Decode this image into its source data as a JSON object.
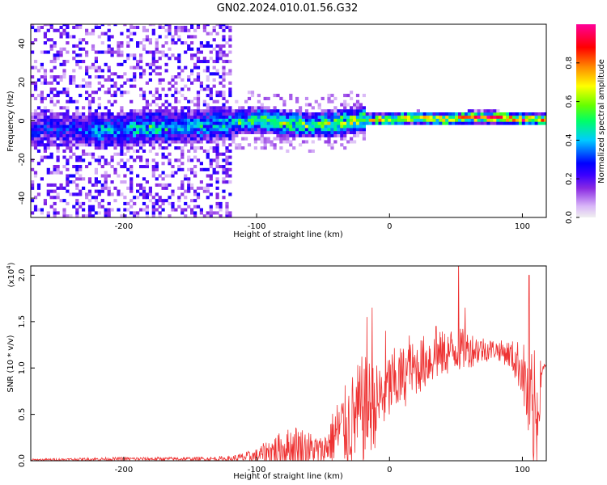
{
  "title": "GN02.2024.010.01.56.G32",
  "chart_data": [
    {
      "type": "heatmap",
      "xlabel": "Height of straight line (km)",
      "ylabel": "Frequency (Hz)",
      "xlim": [
        -270,
        118
      ],
      "ylim": [
        -50,
        50
      ],
      "xticks": [
        -200,
        -100,
        0,
        100
      ],
      "yticks": [
        -40,
        -20,
        0,
        20,
        40
      ],
      "colorbar": {
        "label": "Normalized spectral amplitude",
        "ticks": [
          "0.0",
          "0.2",
          "0.4",
          "0.6",
          "0.8"
        ],
        "range": [
          0,
          1
        ],
        "colors": [
          "#f0f0f0",
          "#d8b4f8",
          "#8a2be2",
          "#3a00ff",
          "#0000ff",
          "#00ccff",
          "#00ff66",
          "#66ff00",
          "#ffff00",
          "#ff8800",
          "#ff0000",
          "#ff0099"
        ]
      },
      "ridge": {
        "x": [
          -240,
          -220,
          -200,
          -180,
          -160,
          -140,
          -120,
          -100,
          -80,
          -60,
          -40,
          -20,
          0,
          20,
          40,
          60,
          80,
          100,
          115
        ],
        "y": [
          -5,
          -6,
          -5,
          -4,
          -4,
          -3,
          -2,
          0,
          -2,
          -3,
          -2,
          0,
          0,
          1,
          0,
          1,
          1,
          0,
          0
        ],
        "amplitude": [
          0.2,
          0.35,
          0.4,
          0.45,
          0.35,
          0.4,
          0.45,
          0.55,
          0.55,
          0.6,
          0.62,
          0.7,
          0.75,
          0.8,
          0.82,
          0.9,
          0.95,
          0.9,
          0.8
        ]
      }
    },
    {
      "type": "line",
      "xlabel": "Height of straight line (km)",
      "ylabel": "SNR (10 * v/v)",
      "scale_label": "(x10",
      "scale_exp": "4",
      "scale_close": ")",
      "xlim": [
        -270,
        118
      ],
      "ylim": [
        0,
        2.1
      ],
      "xticks": [
        -200,
        -100,
        0,
        100
      ],
      "yticks": [
        "0.0",
        "0.5",
        "1.0",
        "1.5",
        "2.0"
      ],
      "color": "#ee3333",
      "envelope": {
        "x": [
          -270,
          -200,
          -150,
          -120,
          -100,
          -90,
          -70,
          -60,
          -50,
          -40,
          -30,
          -20,
          -10,
          0,
          10,
          20,
          30,
          40,
          50,
          60,
          70,
          80,
          90,
          100,
          105,
          110,
          115,
          118
        ],
        "base": [
          0.01,
          0.02,
          0.02,
          0.02,
          0.05,
          0.1,
          0.15,
          0.12,
          0.1,
          0.3,
          0.4,
          0.55,
          0.6,
          0.8,
          0.9,
          1.0,
          1.1,
          1.15,
          1.2,
          1.2,
          1.2,
          1.2,
          1.15,
          1.0,
          0.6,
          0.4,
          1.0,
          1.02
        ],
        "noise": [
          0.01,
          0.02,
          0.02,
          0.03,
          0.08,
          0.15,
          0.25,
          0.2,
          0.15,
          0.35,
          0.5,
          0.6,
          0.45,
          0.4,
          0.35,
          0.3,
          0.3,
          0.25,
          0.25,
          0.2,
          0.15,
          0.1,
          0.15,
          0.3,
          0.6,
          0.8,
          0.05,
          0.02
        ]
      },
      "spikes": [
        {
          "x": -17,
          "y": 1.55
        },
        {
          "x": -13,
          "y": 1.65
        },
        {
          "x": -3,
          "y": 1.4
        },
        {
          "x": 15,
          "y": 1.35
        },
        {
          "x": 35,
          "y": 1.45
        },
        {
          "x": 52,
          "y": 2.2
        },
        {
          "x": 57,
          "y": 1.65
        },
        {
          "x": 105,
          "y": 2.0
        },
        {
          "x": 108,
          "y": 0.1
        }
      ]
    }
  ]
}
